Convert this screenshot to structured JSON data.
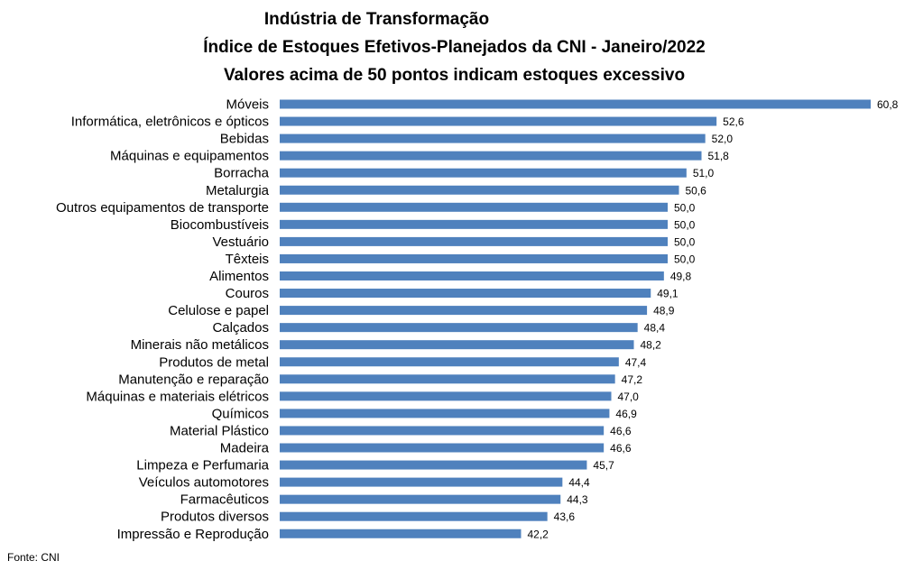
{
  "chart_data": {
    "type": "bar",
    "orientation": "horizontal",
    "title": "Indústria de Transformação",
    "subtitle": "Índice de Estoques Efetivos-Planejados da CNI - Janeiro/2022",
    "subtitle2": "Valores acima de 50 pontos indicam estoques excessivo",
    "xlabel": "",
    "ylabel": "",
    "bar_color": "#4F81BD",
    "grid": false,
    "legend": "none",
    "categories": [
      "Móveis",
      "Informática, eletrônicos e ópticos",
      "Bebidas",
      "Máquinas e equipamentos",
      "Borracha",
      "Metalurgia",
      "Outros equipamentos de transporte",
      "Biocombustíveis",
      "Vestuário",
      "Têxteis",
      "Alimentos",
      "Couros",
      "Celulose e papel",
      "Calçados",
      "Minerais não metálicos",
      "Produtos de metal",
      "Manutenção e reparação",
      "Máquinas e materiais elétricos",
      "Químicos",
      "Material Plástico",
      "Madeira",
      "Limpeza e Perfumaria",
      "Veículos automotores",
      "Farmacêuticos",
      "Produtos diversos",
      "Impressão e Reprodução"
    ],
    "values": [
      60.8,
      52.6,
      52.0,
      51.8,
      51.0,
      50.6,
      50.0,
      50.0,
      50.0,
      50.0,
      49.8,
      49.1,
      48.9,
      48.4,
      48.2,
      47.4,
      47.2,
      47.0,
      46.9,
      46.6,
      46.6,
      45.7,
      44.4,
      44.3,
      43.6,
      42.2
    ],
    "value_labels": [
      "60,8",
      "52,6",
      "52,0",
      "51,8",
      "51,0",
      "50,6",
      "50,0",
      "50,0",
      "50,0",
      "50,0",
      "49,8",
      "49,1",
      "48,9",
      "48,4",
      "48,2",
      "47,4",
      "47,2",
      "47,0",
      "46,9",
      "46,6",
      "46,6",
      "45,7",
      "44,4",
      "44,3",
      "43,6",
      "42,2"
    ],
    "source": "Fonte: CNI"
  }
}
